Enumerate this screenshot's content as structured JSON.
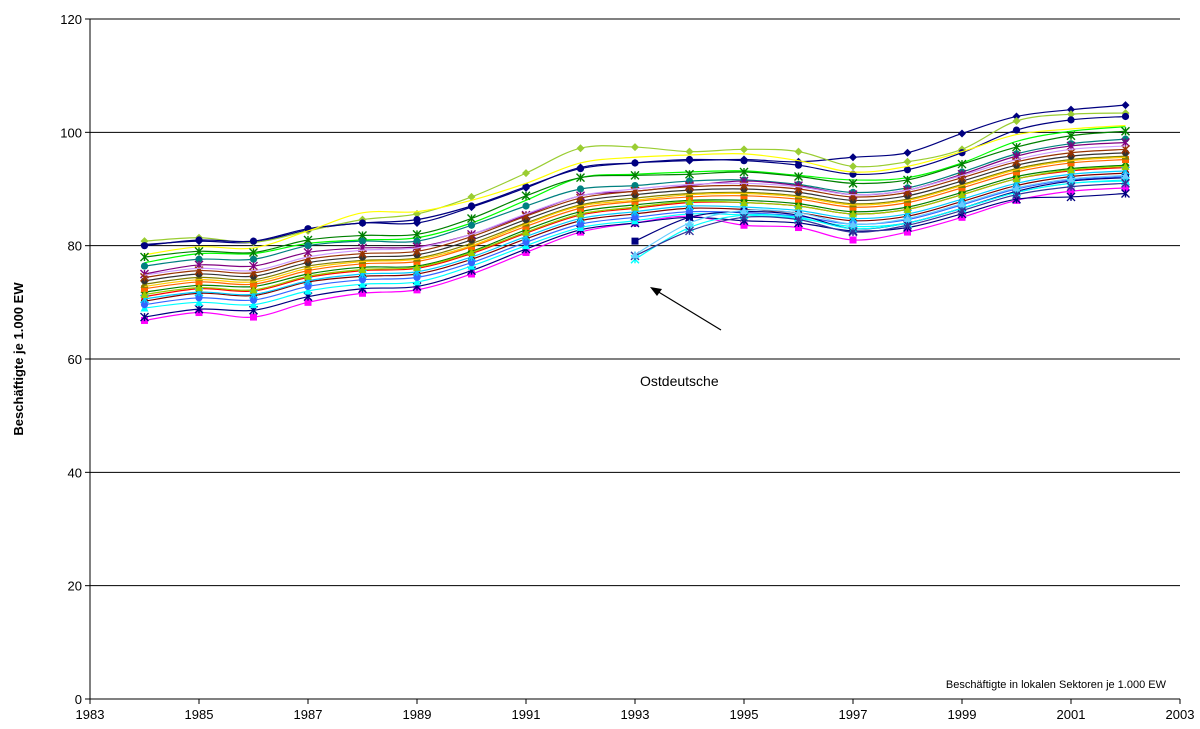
{
  "chart_data": {
    "type": "line",
    "title": "",
    "xlabel": "",
    "ylabel": "Beschäftigte je 1.000 EW",
    "xlim": [
      1983,
      2003
    ],
    "ylim": [
      0,
      120
    ],
    "x_ticks": [
      1983,
      1985,
      1987,
      1989,
      1991,
      1993,
      1995,
      1997,
      1999,
      2001,
      2003
    ],
    "y_ticks": [
      0,
      20,
      40,
      60,
      80,
      100,
      120
    ],
    "grid": "horizontal",
    "note": "Beschäftigte in lokalen Sektoren je 1.000 EW",
    "annotation": {
      "text": "Ostdeutsche",
      "points_to": {
        "x": 1993.3,
        "y": 72.5
      }
    },
    "x": [
      1984,
      1985,
      1986,
      1987,
      1988,
      1989,
      1990,
      1991,
      1992,
      1993,
      1994,
      1995,
      1996,
      1997,
      1998,
      1999,
      2000,
      2001,
      2002
    ],
    "series": [
      {
        "color": "#000080",
        "marker": "diamond",
        "values": [
          80.2,
          80.8,
          80.6,
          82.8,
          84.0,
          84.0,
          86.8,
          90.2,
          93.8,
          94.6,
          95.0,
          95.2,
          94.8,
          95.6,
          96.4,
          99.8,
          102.8,
          104.0,
          104.8
        ]
      },
      {
        "color": "#9ACD32",
        "marker": "diamond",
        "values": [
          80.8,
          81.4,
          80.6,
          82.6,
          84.6,
          85.6,
          88.6,
          92.8,
          97.2,
          97.4,
          96.6,
          97.0,
          96.6,
          94.0,
          94.8,
          97.0,
          102.0,
          103.2,
          103.4
        ]
      },
      {
        "color": "#000080",
        "marker": "circle",
        "values": [
          80.0,
          81.0,
          80.8,
          83.0,
          84.0,
          84.6,
          87.0,
          90.4,
          93.6,
          94.6,
          95.2,
          95.0,
          94.2,
          92.6,
          93.4,
          96.4,
          100.4,
          102.2,
          102.8
        ]
      },
      {
        "color": "#FFFF00",
        "marker": "none",
        "values": [
          78.4,
          79.8,
          79.6,
          82.6,
          85.8,
          86.0,
          88.0,
          91.0,
          94.6,
          95.6,
          96.0,
          96.2,
          95.0,
          93.0,
          94.0,
          96.6,
          99.6,
          100.6,
          101.2
        ]
      },
      {
        "color": "#00FF00",
        "marker": "none",
        "values": [
          77.0,
          78.6,
          78.6,
          80.4,
          81.0,
          81.4,
          84.0,
          88.0,
          92.0,
          92.6,
          93.0,
          93.2,
          92.4,
          91.6,
          92.0,
          94.6,
          98.4,
          100.2,
          101.0
        ]
      },
      {
        "color": "#008000",
        "marker": "star",
        "values": [
          78.0,
          79.0,
          78.8,
          81.0,
          81.8,
          82.0,
          84.8,
          88.8,
          92.0,
          92.4,
          92.6,
          93.0,
          92.2,
          91.0,
          91.6,
          94.4,
          97.4,
          99.4,
          100.2
        ]
      },
      {
        "color": "#008080",
        "marker": "circle",
        "values": [
          76.4,
          77.6,
          77.6,
          80.0,
          80.8,
          80.8,
          83.6,
          87.0,
          90.0,
          90.6,
          91.4,
          91.6,
          90.8,
          89.4,
          90.2,
          93.0,
          96.2,
          98.0,
          98.8
        ]
      },
      {
        "color": "#800080",
        "marker": "star",
        "values": [
          75.0,
          76.6,
          76.4,
          78.8,
          79.6,
          79.8,
          82.0,
          85.4,
          88.8,
          89.6,
          90.6,
          91.4,
          90.6,
          89.0,
          89.8,
          92.6,
          95.8,
          97.6,
          98.2
        ]
      },
      {
        "color": "#FF00FF",
        "marker": "square",
        "values": [
          66.8,
          68.2,
          67.4,
          70.0,
          71.6,
          72.2,
          75.0,
          78.8,
          82.4,
          84.0,
          85.2,
          83.6,
          83.2,
          81.0,
          82.4,
          85.0,
          88.0,
          89.6,
          90.2
        ]
      },
      {
        "color": "#000080",
        "marker": "star",
        "values": [
          67.4,
          68.8,
          68.6,
          71.0,
          72.4,
          72.8,
          75.6,
          79.4,
          82.8,
          84.0,
          85.0,
          84.4,
          84.0,
          82.6,
          83.2,
          85.6,
          88.2,
          88.6,
          89.2
        ]
      },
      {
        "color": "#00FFFF",
        "marker": "triangle",
        "values": [
          69.0,
          70.0,
          69.6,
          72.0,
          73.2,
          73.6,
          76.4,
          80.0,
          83.2,
          84.4,
          85.6,
          85.4,
          84.8,
          83.4,
          84.0,
          86.6,
          89.4,
          91.0,
          91.6
        ]
      },
      {
        "color": "#800000",
        "marker": "circle",
        "values": [
          70.2,
          71.6,
          71.2,
          73.6,
          74.6,
          75.0,
          77.6,
          81.2,
          84.4,
          85.6,
          86.6,
          86.4,
          85.8,
          84.4,
          85.2,
          87.8,
          90.6,
          92.2,
          92.8
        ]
      },
      {
        "color": "#FF0000",
        "marker": "circle",
        "values": [
          71.0,
          72.4,
          72.0,
          74.4,
          75.6,
          76.0,
          78.6,
          82.2,
          85.4,
          86.6,
          87.6,
          87.6,
          87.0,
          85.6,
          86.4,
          89.0,
          91.8,
          93.2,
          93.8
        ]
      },
      {
        "color": "#008000",
        "marker": "diamond",
        "values": [
          71.8,
          73.0,
          72.8,
          75.0,
          76.2,
          76.4,
          79.0,
          82.8,
          86.0,
          87.2,
          88.0,
          88.0,
          87.4,
          86.0,
          86.8,
          89.4,
          92.2,
          93.6,
          94.2
        ]
      },
      {
        "color": "#FF6600",
        "marker": "square",
        "values": [
          72.4,
          73.6,
          73.2,
          75.6,
          76.8,
          77.2,
          79.8,
          83.4,
          86.6,
          87.8,
          88.6,
          88.8,
          88.2,
          86.8,
          87.6,
          90.2,
          93.0,
          94.6,
          95.2
        ]
      },
      {
        "color": "#808000",
        "marker": "triangle",
        "values": [
          73.2,
          74.4,
          74.0,
          76.4,
          77.4,
          77.8,
          80.4,
          84.0,
          87.2,
          88.4,
          89.2,
          89.4,
          88.8,
          87.4,
          88.2,
          90.8,
          93.6,
          95.2,
          95.8
        ]
      },
      {
        "color": "#333333",
        "marker": "circle",
        "values": [
          73.8,
          75.0,
          74.6,
          77.0,
          78.0,
          78.4,
          81.0,
          84.6,
          87.8,
          89.0,
          89.8,
          90.0,
          89.4,
          88.0,
          88.8,
          91.4,
          94.2,
          95.8,
          96.4
        ]
      },
      {
        "color": "#993300",
        "marker": "star",
        "values": [
          74.4,
          75.6,
          75.2,
          77.6,
          78.6,
          79.0,
          81.6,
          85.2,
          88.4,
          89.6,
          90.4,
          90.6,
          90.0,
          88.6,
          89.4,
          92.0,
          94.8,
          96.4,
          97.0
        ]
      },
      {
        "color": "#CC99FF",
        "marker": "none",
        "values": [
          74.8,
          76.0,
          75.6,
          78.0,
          79.2,
          79.6,
          82.0,
          85.6,
          88.8,
          90.0,
          90.8,
          91.0,
          90.4,
          89.0,
          89.8,
          92.4,
          95.2,
          97.0,
          97.6
        ]
      },
      {
        "color": "#FFCC00",
        "marker": "none",
        "values": [
          72.8,
          74.0,
          73.6,
          76.0,
          77.2,
          77.6,
          80.0,
          83.8,
          87.0,
          88.0,
          89.0,
          89.2,
          88.6,
          87.2,
          88.0,
          90.6,
          93.4,
          95.0,
          95.6
        ]
      },
      {
        "color": "#3366FF",
        "marker": "circle",
        "values": [
          69.6,
          70.8,
          70.4,
          72.8,
          74.0,
          74.4,
          77.0,
          80.6,
          83.8,
          85.0,
          86.0,
          85.8,
          85.2,
          83.8,
          84.6,
          87.2,
          90.0,
          91.6,
          92.2
        ]
      },
      {
        "color": "#00CCFF",
        "marker": "star",
        "values": [
          70.6,
          71.8,
          71.4,
          73.8,
          75.0,
          75.4,
          78.0,
          81.6,
          84.8,
          86.0,
          87.0,
          86.8,
          86.2,
          84.8,
          85.6,
          88.2,
          91.0,
          92.6,
          93.2
        ]
      },
      {
        "color": "#99CC00",
        "marker": "triangle",
        "values": [
          71.4,
          72.6,
          72.2,
          74.6,
          75.8,
          76.2,
          78.8,
          82.4,
          85.6,
          86.8,
          87.8,
          87.6,
          87.0,
          85.6,
          86.4,
          89.0,
          91.8,
          93.4,
          94.0
        ]
      },
      {
        "color": "#000080",
        "marker": "square",
        "values": [
          null,
          null,
          null,
          null,
          null,
          null,
          null,
          null,
          null,
          80.8,
          85.0,
          86.0,
          85.4,
          83.0,
          84.0,
          86.6,
          89.6,
          91.4,
          92.0
        ]
      },
      {
        "color": "#00FFFF",
        "marker": "star",
        "values": [
          null,
          null,
          null,
          null,
          null,
          null,
          null,
          null,
          null,
          77.6,
          83.2,
          85.4,
          85.0,
          83.0,
          84.0,
          86.6,
          89.4,
          91.0,
          91.4
        ]
      },
      {
        "color": "#333399",
        "marker": "star",
        "values": [
          null,
          null,
          null,
          null,
          null,
          null,
          null,
          null,
          null,
          78.2,
          82.6,
          85.0,
          84.6,
          82.4,
          83.6,
          86.2,
          89.0,
          90.4,
          91.0
        ]
      },
      {
        "color": "#66CCFF",
        "marker": "triangle",
        "values": [
          null,
          null,
          null,
          null,
          null,
          null,
          null,
          null,
          null,
          78.4,
          84.0,
          86.2,
          85.8,
          83.8,
          84.8,
          87.4,
          90.2,
          91.8,
          92.4
        ]
      }
    ]
  }
}
